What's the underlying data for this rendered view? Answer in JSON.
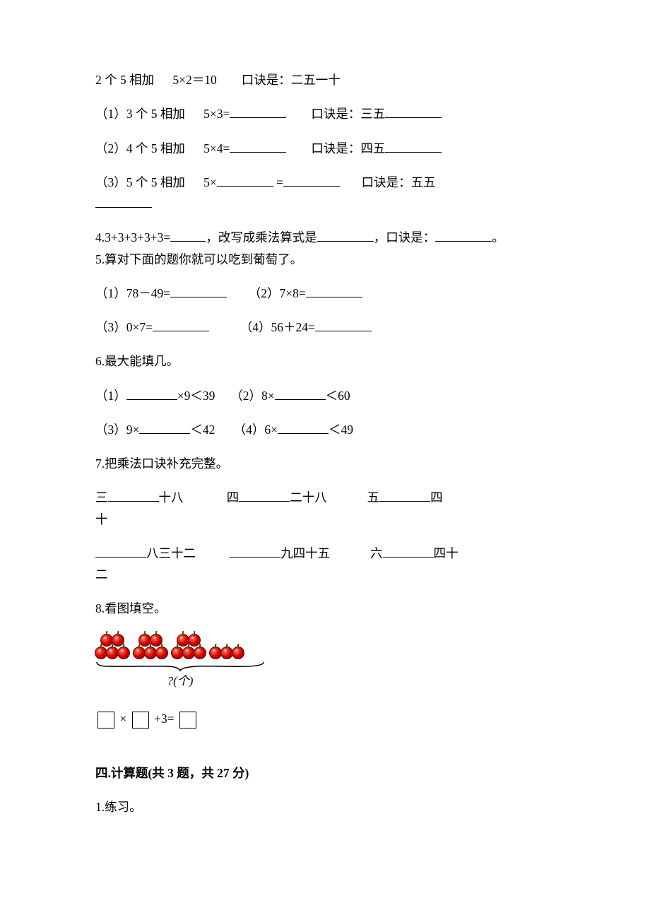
{
  "example": {
    "desc": "2 个 5 相加",
    "expr": "5×2＝10",
    "mnemonic_label": "口诀是：",
    "mnemonic": "二五一十"
  },
  "q_items": [
    {
      "n": "（1）",
      "desc": "3 个 5 相加",
      "expr_pre": "5×3=",
      "mnemonic_label": "口诀是：三五"
    },
    {
      "n": "（2）",
      "desc": "4 个 5 相加",
      "expr_pre": "5×4=",
      "mnemonic_label": "口诀是：四五"
    }
  ],
  "q3": {
    "n": "（3）",
    "desc": "5 个 5 相加",
    "expr_pre": "5×",
    "eq": " =",
    "mnemonic_label": "口诀是：五五"
  },
  "q4": {
    "pre": "4.3+3+3+3+3=",
    "mid1": "，改写成乘法算式是",
    "mid2": "，口诀是：",
    "end": "。"
  },
  "q5": {
    "title": "5.算对下面的题你就可以吃到葡萄了。",
    "a": "（1）78－49=",
    "b": "（2）7×8=",
    "c": "（3）0×7=",
    "d": "（4）56＋24="
  },
  "q6": {
    "title": "6.最大能填几。",
    "a_pre": "（1）",
    "a_post": "×9＜39",
    "b_pre": "（2）8×",
    "b_post": "＜60",
    "c_pre": "（3）9×",
    "c_post": "＜42",
    "d_pre": "（4）6×",
    "d_post": "＜49"
  },
  "q7": {
    "title": "7.把乘法口诀补充完整。",
    "r1a_pre": "三",
    "r1a_post": "十八",
    "r1b_pre": "四",
    "r1b_post": "二十八",
    "r1c_pre": "五",
    "r1c_post": "四",
    "r1_tail": "十",
    "r2a_post": "八三十二",
    "r2b_post": "九四十五",
    "r2c_pre": "六",
    "r2c_post": "四十",
    "r2_tail": "二"
  },
  "q8": {
    "title": "8.看图填空。",
    "brace_label": "?(个)",
    "cherry_groups": [
      5,
      5,
      5,
      3
    ],
    "colors": {
      "cherry_fill": "#d60000",
      "cherry_stroke": "#5a0000",
      "stem": "#2a5a00"
    },
    "expr_parts": {
      "times": "×",
      "plus3eq": "+3="
    }
  },
  "section4": {
    "heading": "四.计算题(共 3 题，共 27 分)",
    "q1": "1.练习。"
  }
}
